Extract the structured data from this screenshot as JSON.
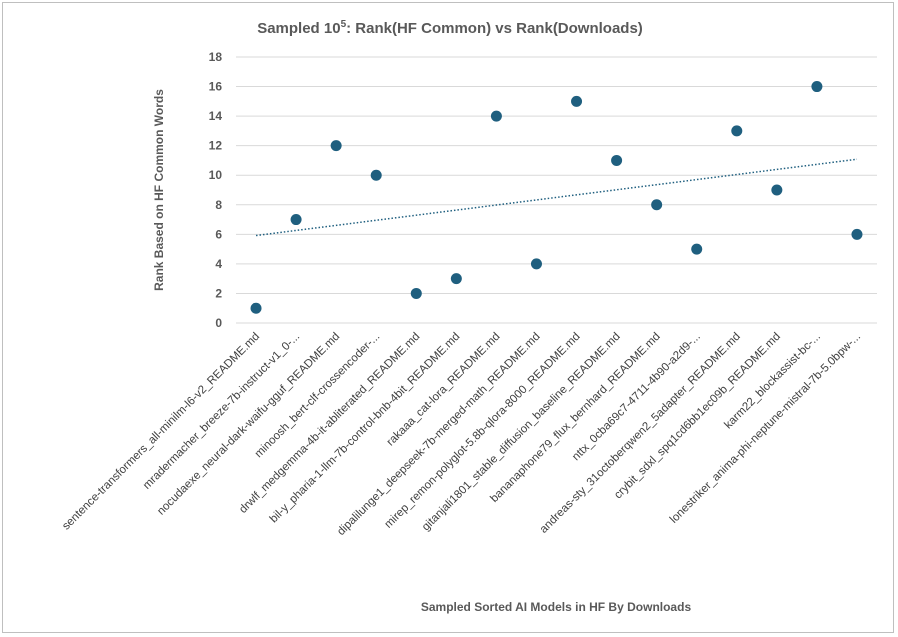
{
  "chart_data": {
    "type": "scatter",
    "title_prefix": "Sampled 10",
    "title_sup": "5",
    "title_suffix": ": Rank(HF Common) vs Rank(Downloads)",
    "xlabel": "Sampled Sorted AI Models in HF By Downloads",
    "ylabel": "Rank Based on HF Common Words",
    "ylim": [
      0,
      18
    ],
    "yticks": [
      0,
      2,
      4,
      6,
      8,
      10,
      12,
      14,
      16,
      18
    ],
    "grid": "horizontal",
    "legend": "none",
    "marker_color": "#1f5f7f",
    "trendline": {
      "type": "linear",
      "style": "dotted",
      "color": "#1f5f7f"
    },
    "categories": [
      "sentence-transformers_all-minilm-l6-v2_README.md",
      "mradermacher_breeze-7b-instruct-v1_0-...",
      "nocudaexe_neural-dark-waifu-gguf_README.md",
      "minoosh_bert-clf-crossencoder-...",
      "drwlf_medgemma-4b-it-abliterated_README.md",
      "bil-y_pharia-1-llm-7b-control-bnb-4bit_README.md",
      "rakaaa_cat-lora_README.md",
      "dipalilunge1_deepseek-7b-merged-math_README.md",
      "mirep_remon-polyglot-5.8b-qlora-8000_README.md",
      "gitanjali1801_stable_diffusion_baseline_README.md",
      "bananaphone79_flux_bernhard_README.md",
      "nttx_0cba69c7-4711-4b90-a2d9-...",
      "andreas-sty_31octoberqwen2_5adapter_README.md",
      "crybit_sdxl_spq1cd6bb1ec09b_README.md",
      "karm22_blockassist-bc-...",
      "lonestriker_anima-phi-neptune-mistral-7b-5.0bpw-..."
    ],
    "values": [
      1,
      7,
      12,
      10,
      2,
      3,
      14,
      4,
      15,
      11,
      8,
      5,
      13,
      9,
      16,
      6
    ]
  }
}
